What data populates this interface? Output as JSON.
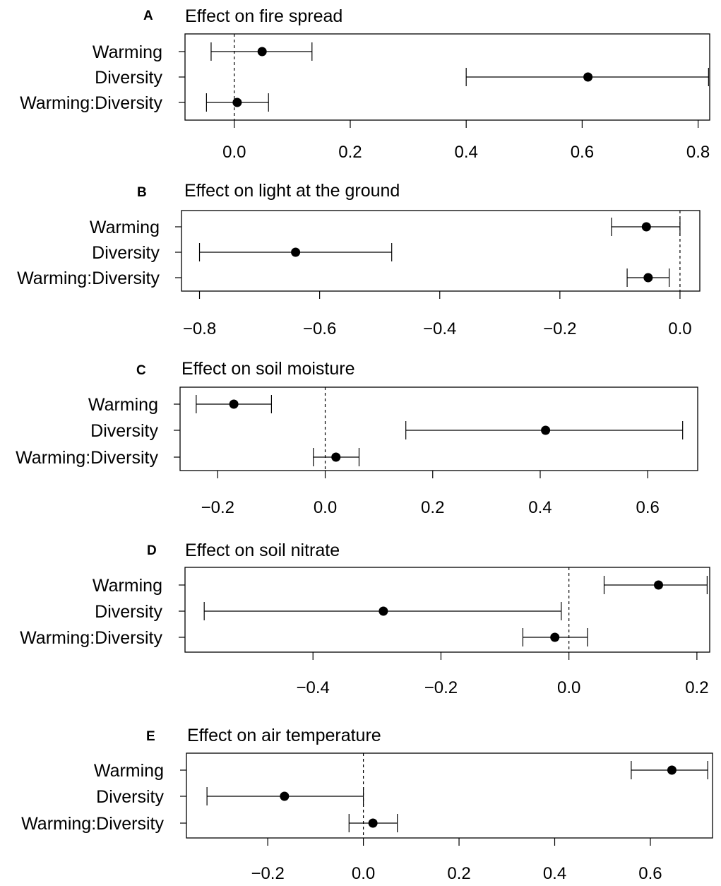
{
  "chart_data": [
    {
      "type": "dot-and-whisker",
      "panel": "A",
      "title": "Effect on fire spread",
      "xlabel": "",
      "ylabel": "",
      "xlim": [
        -0.085,
        0.82
      ],
      "ticks": [
        0.0,
        0.2,
        0.4,
        0.6,
        0.8
      ],
      "tick_labels": [
        "0.0",
        "0.2",
        "0.4",
        "0.6",
        "0.8"
      ],
      "reference_line": 0,
      "categories": [
        "Warming",
        "Diversity",
        "Warming:Diversity"
      ],
      "estimates": [
        0.048,
        0.61,
        0.005
      ],
      "lower": [
        -0.04,
        0.4,
        -0.048
      ],
      "upper": [
        0.134,
        0.818,
        0.059
      ]
    },
    {
      "type": "dot-and-whisker",
      "panel": "B",
      "title": "Effect on light at the ground",
      "xlabel": "",
      "ylabel": "",
      "xlim": [
        -0.83,
        0.033
      ],
      "ticks": [
        -0.8,
        -0.6,
        -0.4,
        -0.2,
        0.0
      ],
      "tick_labels": [
        "−0.8",
        "−0.6",
        "−0.4",
        "−0.2",
        "0.0"
      ],
      "reference_line": 0,
      "categories": [
        "Warming",
        "Diversity",
        "Warming:Diversity"
      ],
      "estimates": [
        -0.056,
        -0.64,
        -0.053
      ],
      "lower": [
        -0.114,
        -0.8,
        -0.088
      ],
      "upper": [
        0.0,
        -0.48,
        -0.018
      ]
    },
    {
      "type": "dot-and-whisker",
      "panel": "C",
      "title": "Effect on soil moisture",
      "xlabel": "",
      "ylabel": "",
      "xlim": [
        -0.27,
        0.693
      ],
      "ticks": [
        -0.2,
        0.0,
        0.2,
        0.4,
        0.6
      ],
      "tick_labels": [
        "−0.2",
        "0.0",
        "0.2",
        "0.4",
        "0.6"
      ],
      "reference_line": 0,
      "categories": [
        "Warming",
        "Diversity",
        "Warming:Diversity"
      ],
      "estimates": [
        -0.17,
        0.41,
        0.02
      ],
      "lower": [
        -0.24,
        0.15,
        -0.022
      ],
      "upper": [
        -0.1,
        0.665,
        0.063
      ]
    },
    {
      "type": "dot-and-whisker",
      "panel": "D",
      "title": "Effect on soil nitrate",
      "xlabel": "",
      "ylabel": "",
      "xlim": [
        -0.6,
        0.22
      ],
      "ticks": [
        -0.4,
        -0.2,
        0.0,
        0.2
      ],
      "tick_labels": [
        "−0.4",
        "−0.2",
        "0.0",
        "0.2"
      ],
      "reference_line": 0,
      "categories": [
        "Warming",
        "Diversity",
        "Warming:Diversity"
      ],
      "estimates": [
        0.14,
        -0.29,
        -0.022
      ],
      "lower": [
        0.055,
        -0.57,
        -0.072
      ],
      "upper": [
        0.216,
        -0.012,
        0.029
      ]
    },
    {
      "type": "dot-and-whisker",
      "panel": "E",
      "title": "Effect on air temperature",
      "xlabel": "",
      "ylabel": "",
      "xlim": [
        -0.37,
        0.73
      ],
      "ticks": [
        -0.2,
        0.0,
        0.2,
        0.4,
        0.6
      ],
      "tick_labels": [
        "−0.2",
        "0.0",
        "0.2",
        "0.4",
        "0.6"
      ],
      "reference_line": 0,
      "categories": [
        "Warming",
        "Diversity",
        "Warming:Diversity"
      ],
      "estimates": [
        0.645,
        -0.165,
        0.02
      ],
      "lower": [
        0.56,
        -0.327,
        -0.03
      ],
      "upper": [
        0.72,
        0.0,
        0.071
      ]
    }
  ]
}
